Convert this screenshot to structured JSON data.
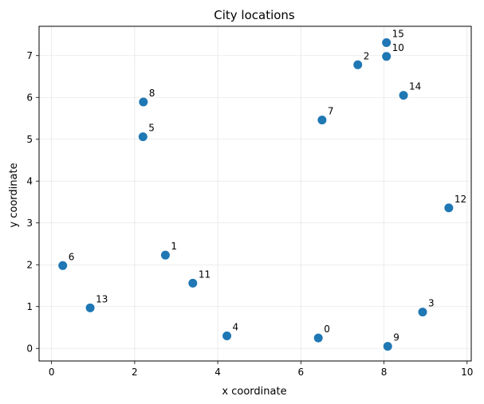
{
  "chart_data": {
    "type": "scatter",
    "title": "City locations",
    "xlabel": "x coordinate",
    "ylabel": "y coordinate",
    "xlim": [
      -0.3,
      10.1
    ],
    "ylim": [
      -0.3,
      7.7
    ],
    "xticks": [
      0,
      2,
      4,
      6,
      8,
      10
    ],
    "yticks": [
      0,
      1,
      2,
      3,
      4,
      5,
      6,
      7
    ],
    "grid": true,
    "marker_color": "#1f77b4",
    "points": [
      {
        "label": "0",
        "x": 6.42,
        "y": 0.25
      },
      {
        "label": "1",
        "x": 2.74,
        "y": 2.23
      },
      {
        "label": "2",
        "x": 7.37,
        "y": 6.78
      },
      {
        "label": "3",
        "x": 8.93,
        "y": 0.87
      },
      {
        "label": "4",
        "x": 4.22,
        "y": 0.3
      },
      {
        "label": "5",
        "x": 2.2,
        "y": 5.06
      },
      {
        "label": "6",
        "x": 0.27,
        "y": 1.98
      },
      {
        "label": "7",
        "x": 6.51,
        "y": 5.46
      },
      {
        "label": "8",
        "x": 2.21,
        "y": 5.89
      },
      {
        "label": "9",
        "x": 8.09,
        "y": 0.05
      },
      {
        "label": "10",
        "x": 8.06,
        "y": 6.98
      },
      {
        "label": "11",
        "x": 3.4,
        "y": 1.56
      },
      {
        "label": "12",
        "x": 9.56,
        "y": 3.36
      },
      {
        "label": "13",
        "x": 0.93,
        "y": 0.97
      },
      {
        "label": "14",
        "x": 8.47,
        "y": 6.05
      },
      {
        "label": "15",
        "x": 8.06,
        "y": 7.31
      }
    ]
  }
}
